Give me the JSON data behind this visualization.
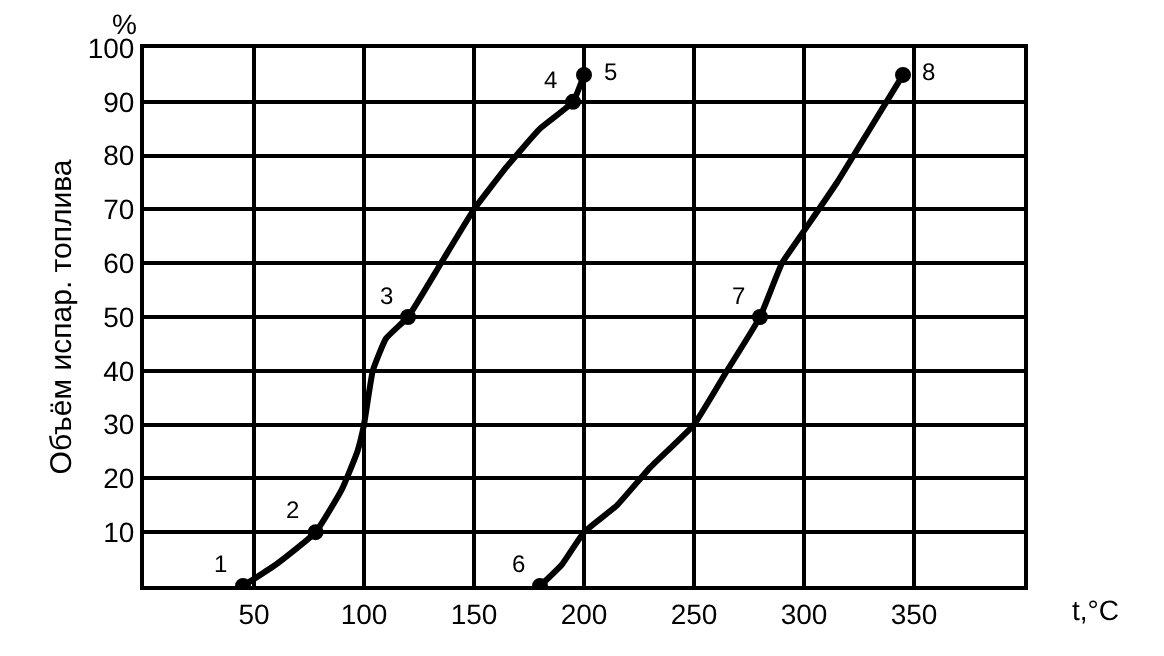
{
  "chart_data": {
    "type": "line",
    "xlabel": "t,°C",
    "ylabel": "Объём испар. топлива",
    "xlim": [
      0,
      400
    ],
    "ylim": [
      0,
      100
    ],
    "xticks": [
      50,
      100,
      150,
      200,
      250,
      300,
      350
    ],
    "yticks": [
      10,
      20,
      30,
      40,
      50,
      60,
      70,
      80,
      90,
      100
    ],
    "grid": true,
    "line_style": "solid",
    "series": [
      {
        "color": "#000000",
        "marker": "none",
        "x": [
          45,
          60,
          78,
          90,
          97,
          100,
          104,
          110,
          120,
          135,
          150,
          165,
          180,
          195,
          200
        ],
        "values": [
          0,
          4,
          10,
          18,
          25,
          30,
          40,
          46,
          50,
          60,
          70,
          78,
          85,
          90,
          95
        ]
      },
      {
        "color": "#000000",
        "marker": "none",
        "x": [
          180,
          190,
          200,
          215,
          230,
          250,
          265,
          280,
          290,
          300,
          315,
          330,
          345
        ],
        "values": [
          0,
          4,
          10,
          15,
          22,
          30,
          40,
          50,
          60,
          66,
          75,
          85,
          95
        ]
      },
      {
        "type": "scatter",
        "color": "#000000",
        "marker": "circle",
        "x": [
          45,
          78,
          120,
          195,
          200,
          180,
          280,
          345
        ],
        "values": [
          0,
          10,
          50,
          90,
          95,
          0,
          50,
          95
        ]
      }
    ],
    "annotations": [
      "%",
      {
        "text": "1",
        "x": 45,
        "y": 0
      },
      {
        "text": "2",
        "x": 78,
        "y": 10
      },
      {
        "text": "3",
        "x": 120,
        "y": 50
      },
      {
        "text": "4",
        "x": 195,
        "y": 90
      },
      {
        "text": "5",
        "x": 200,
        "y": 95
      },
      {
        "text": "6",
        "x": 180,
        "y": 0
      },
      {
        "text": "7",
        "x": 280,
        "y": 50
      },
      {
        "text": "8",
        "x": 345,
        "y": 95
      }
    ]
  }
}
